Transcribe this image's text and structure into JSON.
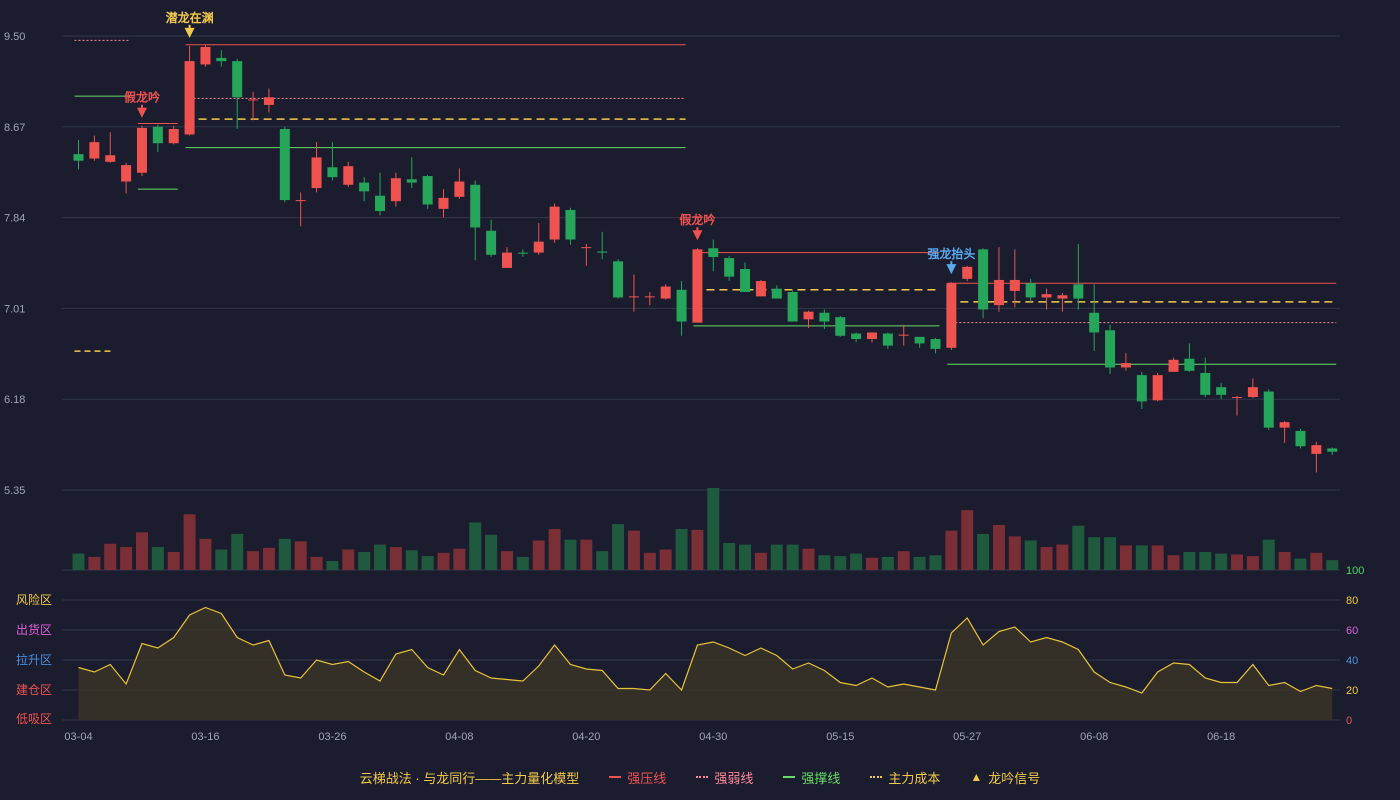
{
  "legend": {
    "title": "云梯战法 · 与龙同行——主力量化模型",
    "items": [
      {
        "label": "强压线",
        "color": "#ef5350"
      },
      {
        "label": "强弱线",
        "color": "#ff8a9a"
      },
      {
        "label": "强撑线",
        "color": "#66dd66"
      },
      {
        "label": "主力成本",
        "color": "#f2c94c"
      },
      {
        "label": "龙吟信号",
        "color": "#f2c94c"
      }
    ]
  },
  "chart_data": [
    {
      "type": "candlestick",
      "y_ticks": [
        "9.50",
        "8.67",
        "7.84",
        "7.01",
        "6.18",
        "5.35"
      ],
      "ylim": [
        5.35,
        9.5
      ],
      "x_tick_labels": [
        "03-04",
        "03-16",
        "03-26",
        "04-08",
        "04-20",
        "04-30",
        "05-15",
        "05-27",
        "06-08",
        "06-18"
      ],
      "x_tick_indices": [
        0,
        8,
        16,
        24,
        32,
        40,
        48,
        56,
        64,
        72
      ],
      "colors": {
        "up": "#ef5350",
        "down": "#26a65b"
      },
      "candles": [
        [
          8.42,
          8.36,
          8.55,
          8.28
        ],
        [
          8.38,
          8.53,
          8.59,
          8.36
        ],
        [
          8.35,
          8.41,
          8.62,
          8.34
        ],
        [
          8.17,
          8.32,
          8.34,
          8.06
        ],
        [
          8.25,
          8.66,
          8.68,
          8.22
        ],
        [
          8.67,
          8.52,
          8.69,
          8.44
        ],
        [
          8.52,
          8.65,
          8.68,
          8.51
        ],
        [
          8.6,
          9.27,
          9.41,
          8.59
        ],
        [
          9.24,
          9.4,
          9.42,
          9.22
        ],
        [
          9.3,
          9.27,
          9.37,
          9.22
        ],
        [
          9.27,
          8.94,
          9.29,
          8.65
        ],
        [
          8.92,
          8.92,
          8.99,
          8.73
        ],
        [
          8.87,
          8.94,
          9.02,
          8.8
        ],
        [
          8.65,
          8.0,
          8.67,
          7.98
        ],
        [
          8.0,
          8.0,
          8.07,
          7.76
        ],
        [
          8.11,
          8.39,
          8.53,
          8.07
        ],
        [
          8.3,
          8.21,
          8.53,
          8.18
        ],
        [
          8.14,
          8.31,
          8.35,
          8.12
        ],
        [
          8.16,
          8.08,
          8.21,
          7.99
        ],
        [
          8.04,
          7.9,
          8.25,
          7.86
        ],
        [
          7.99,
          8.2,
          8.25,
          7.94
        ],
        [
          8.19,
          8.16,
          8.39,
          8.11
        ],
        [
          8.22,
          7.96,
          8.23,
          7.92
        ],
        [
          7.92,
          8.02,
          8.1,
          7.84
        ],
        [
          8.03,
          8.17,
          8.29,
          8.01
        ],
        [
          8.14,
          7.75,
          8.18,
          7.45
        ],
        [
          7.72,
          7.5,
          7.82,
          7.48
        ],
        [
          7.38,
          7.52,
          7.57,
          7.38
        ],
        [
          7.52,
          7.51,
          7.55,
          7.48
        ],
        [
          7.52,
          7.62,
          7.79,
          7.5
        ],
        [
          7.64,
          7.94,
          7.97,
          7.61
        ],
        [
          7.91,
          7.64,
          7.93,
          7.59
        ],
        [
          7.57,
          7.57,
          7.6,
          7.4
        ],
        [
          7.53,
          7.52,
          7.71,
          7.46
        ],
        [
          7.44,
          7.11,
          7.46,
          7.1
        ],
        [
          7.12,
          7.12,
          7.32,
          6.98
        ],
        [
          7.12,
          7.12,
          7.16,
          7.04
        ],
        [
          7.1,
          7.21,
          7.23,
          7.09
        ],
        [
          7.18,
          6.89,
          7.26,
          6.76
        ],
        [
          6.88,
          7.55,
          7.56,
          6.88
        ],
        [
          7.56,
          7.48,
          7.64,
          7.35
        ],
        [
          7.47,
          7.3,
          7.49,
          7.26
        ],
        [
          7.37,
          7.16,
          7.43,
          7.16
        ],
        [
          7.12,
          7.26,
          7.27,
          7.12
        ],
        [
          7.19,
          7.1,
          7.22,
          7.1
        ],
        [
          7.16,
          6.89,
          7.17,
          6.89
        ],
        [
          6.91,
          6.98,
          6.99,
          6.83
        ],
        [
          6.97,
          6.89,
          7.0,
          6.82
        ],
        [
          6.93,
          6.76,
          6.94,
          6.75
        ],
        [
          6.78,
          6.73,
          6.79,
          6.7
        ],
        [
          6.73,
          6.79,
          6.79,
          6.7
        ],
        [
          6.78,
          6.67,
          6.79,
          6.64
        ],
        [
          6.77,
          6.77,
          6.86,
          6.67
        ],
        [
          6.75,
          6.69,
          6.75,
          6.65
        ],
        [
          6.73,
          6.64,
          6.74,
          6.6
        ],
        [
          6.65,
          7.24,
          7.25,
          6.63
        ],
        [
          7.28,
          7.39,
          7.4,
          7.26
        ],
        [
          7.55,
          7.0,
          7.56,
          6.92
        ],
        [
          7.04,
          7.27,
          7.57,
          6.98
        ],
        [
          7.17,
          7.27,
          7.55,
          7.02
        ],
        [
          7.24,
          7.11,
          7.28,
          7.07
        ],
        [
          7.11,
          7.14,
          7.19,
          7.0
        ],
        [
          7.1,
          7.13,
          7.15,
          6.98
        ],
        [
          7.23,
          7.1,
          7.6,
          7.0
        ],
        [
          6.97,
          6.79,
          7.23,
          6.62
        ],
        [
          6.81,
          6.47,
          6.86,
          6.41
        ],
        [
          6.47,
          6.51,
          6.6,
          6.44
        ],
        [
          6.4,
          6.16,
          6.43,
          6.09
        ],
        [
          6.17,
          6.4,
          6.42,
          6.16
        ],
        [
          6.43,
          6.54,
          6.56,
          6.43
        ],
        [
          6.55,
          6.44,
          6.69,
          6.43
        ],
        [
          6.42,
          6.22,
          6.56,
          6.2
        ],
        [
          6.29,
          6.22,
          6.33,
          6.18
        ],
        [
          6.2,
          6.2,
          6.21,
          6.03
        ],
        [
          6.2,
          6.29,
          6.37,
          6.19
        ],
        [
          6.25,
          5.92,
          6.27,
          5.9
        ],
        [
          5.92,
          5.97,
          5.98,
          5.78
        ],
        [
          5.89,
          5.75,
          5.91,
          5.73
        ],
        [
          5.68,
          5.76,
          5.79,
          5.51
        ],
        [
          5.73,
          5.7,
          5.74,
          5.67
        ]
      ],
      "volume": [
        20,
        16,
        32,
        28,
        46,
        28,
        22,
        68,
        38,
        25,
        44,
        23,
        27,
        38,
        35,
        16,
        11,
        25,
        22,
        31,
        28,
        24,
        17,
        21,
        26,
        58,
        43,
        23,
        16,
        36,
        50,
        37,
        37,
        23,
        56,
        48,
        21,
        25,
        50,
        49,
        100,
        33,
        31,
        21,
        31,
        31,
        26,
        18,
        17,
        20,
        15,
        16,
        23,
        16,
        18,
        48,
        73,
        44,
        55,
        41,
        36,
        28,
        31,
        54,
        40,
        40,
        30,
        30,
        30,
        18,
        22,
        22,
        20,
        19,
        17,
        37,
        22,
        14,
        21,
        12
      ],
      "annotations": [
        {
          "text": "潜龙在渊",
          "index": 7,
          "color": "#f2c94c"
        },
        {
          "text": "假龙吟",
          "index": 4,
          "color": "#ef5350"
        },
        {
          "text": "假龙吟",
          "index": 39,
          "color": "#ef5350"
        },
        {
          "text": "强龙抬头",
          "index": 55,
          "color": "#5aaaf0"
        }
      ]
    },
    {
      "type": "line",
      "ylim": [
        0,
        100
      ],
      "y_ticks": [
        0,
        20,
        40,
        60,
        80,
        100
      ],
      "zone_labels": [
        {
          "text": "风险区",
          "color": "#f2c94c"
        },
        {
          "text": "出货区",
          "color": "#e060e0"
        },
        {
          "text": "拉升区",
          "color": "#4a90e2"
        },
        {
          "text": "建仓区",
          "color": "#ef5350"
        },
        {
          "text": "低吸区",
          "color": "#ef5350"
        }
      ],
      "values": [
        35,
        32,
        37,
        24,
        51,
        48,
        55,
        70,
        75,
        71,
        55,
        50,
        53,
        30,
        28,
        40,
        37,
        39,
        32,
        26,
        44,
        47,
        35,
        30,
        47,
        33,
        28,
        27,
        26,
        36,
        50,
        37,
        34,
        33,
        21,
        21,
        20,
        31,
        20,
        50,
        52,
        48,
        43,
        48,
        43,
        34,
        38,
        33,
        25,
        23,
        28,
        22,
        24,
        22,
        20,
        58,
        68,
        50,
        59,
        62,
        52,
        55,
        52,
        47,
        32,
        25,
        22,
        18,
        32,
        38,
        37,
        28,
        25,
        25,
        37,
        23,
        25,
        19,
        23,
        21
      ]
    }
  ]
}
